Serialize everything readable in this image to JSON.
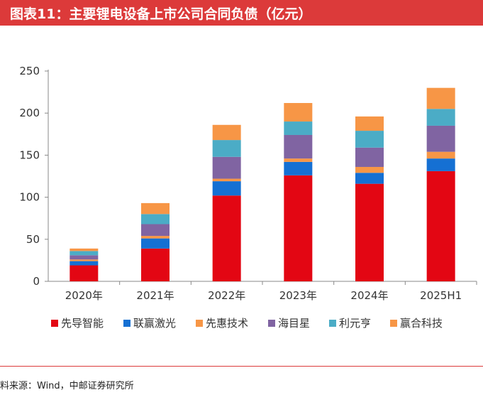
{
  "title": "图表11：主要锂电设备上市公司合同负债（亿元）",
  "source": "料来源：Wind，中邮证券研究所",
  "chart_data": {
    "type": "bar",
    "stacked": true,
    "categories": [
      "2020年",
      "2021年",
      "2022年",
      "2023年",
      "2024年",
      "2025H1"
    ],
    "ylim": [
      0,
      250
    ],
    "yticks": [
      0,
      50,
      100,
      150,
      200,
      250
    ],
    "grid": false,
    "legend_position": "bottom",
    "series": [
      {
        "name": "先导智能",
        "color": "#e30613",
        "values": [
          19,
          39,
          102,
          126,
          116,
          131
        ]
      },
      {
        "name": "联赢激光",
        "color": "#1570d3",
        "values": [
          5,
          12,
          17,
          16,
          13,
          15
        ]
      },
      {
        "name": "先惠技术",
        "color": "#f79646",
        "values": [
          2,
          3,
          3,
          4,
          7,
          8
        ]
      },
      {
        "name": "海目星",
        "color": "#8064a2",
        "values": [
          5,
          14,
          26,
          28,
          23,
          31
        ]
      },
      {
        "name": "利元亨",
        "color": "#4bacc6",
        "values": [
          5,
          12,
          20,
          16,
          20,
          20
        ]
      },
      {
        "name": "赢合科技",
        "color": "#f79646",
        "values": [
          3,
          13,
          18,
          22,
          17,
          25
        ]
      }
    ]
  }
}
